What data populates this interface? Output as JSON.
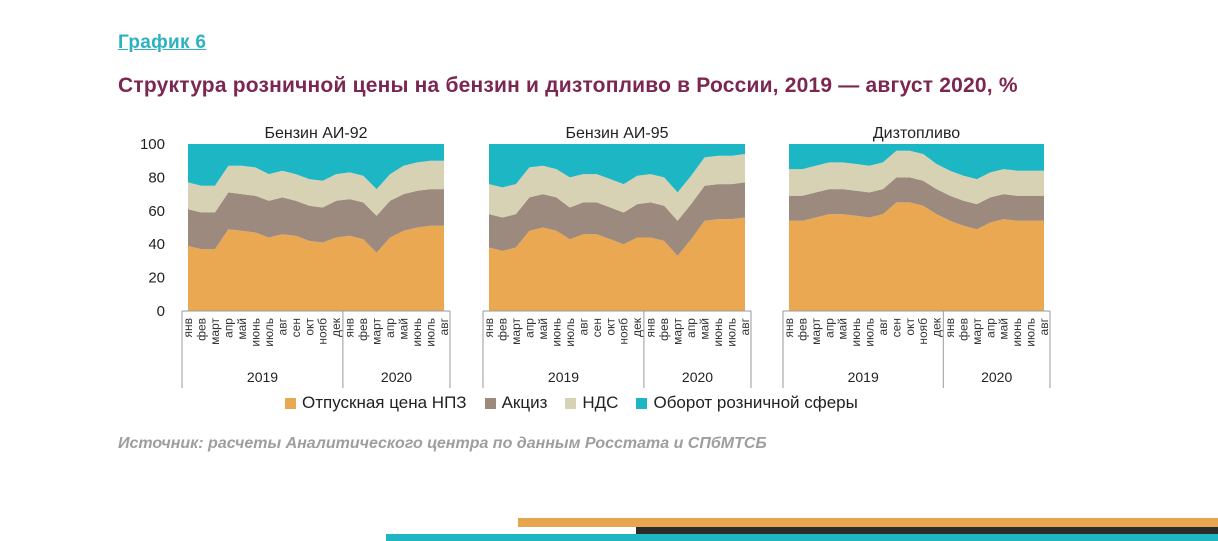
{
  "header": {
    "label": "График 6",
    "title": "Структура розничной цены на бензин и дизтопливо в России, 2019 — август 2020, %"
  },
  "source": "Источник: расчеты Аналитического центра по данным Росстата и СПбМТСБ",
  "colors": {
    "refinery": "#e9a851",
    "excise": "#9b8a7d",
    "vat": "#d8d2b4",
    "retail": "#1cb6c4",
    "title": "#7b2752",
    "link": "#2db2c0"
  },
  "chart_data": [
    {
      "type": "area",
      "stacked": true,
      "title": "Бензин АИ-92",
      "ylim": [
        0,
        100
      ],
      "yticks": [
        0,
        20,
        40,
        60,
        80,
        100
      ],
      "categories": [
        "янв",
        "фев",
        "март",
        "апр",
        "май",
        "июнь",
        "июль",
        "авг",
        "сен",
        "окт",
        "нояб",
        "дек",
        "янв",
        "фев",
        "март",
        "апр",
        "май",
        "июнь",
        "июль",
        "авг"
      ],
      "year_groups": [
        {
          "label": "2019",
          "count": 12
        },
        {
          "label": "2020",
          "count": 8
        }
      ],
      "series": [
        {
          "name": "Отпускная цена НПЗ",
          "values": [
            39,
            37,
            37,
            49,
            48,
            47,
            44,
            46,
            45,
            42,
            41,
            44,
            45,
            43,
            35,
            44,
            48,
            50,
            51,
            51
          ]
        },
        {
          "name": "Акциз",
          "values": [
            22,
            22,
            22,
            22,
            22,
            22,
            22,
            22,
            21,
            21,
            21,
            22,
            22,
            22,
            22,
            22,
            22,
            22,
            22,
            22
          ]
        },
        {
          "name": "НДС",
          "values": [
            16,
            16,
            16,
            16,
            17,
            17,
            16,
            16,
            16,
            16,
            16,
            16,
            16,
            16,
            16,
            16,
            17,
            17,
            17,
            17
          ]
        },
        {
          "name": "Оборот розничной сферы",
          "values": [
            23,
            25,
            25,
            13,
            13,
            14,
            18,
            16,
            18,
            21,
            22,
            18,
            17,
            19,
            27,
            18,
            13,
            11,
            10,
            10
          ]
        }
      ]
    },
    {
      "type": "area",
      "stacked": true,
      "title": "Бензин АИ-95",
      "ylim": [
        0,
        100
      ],
      "yticks": [
        0,
        20,
        40,
        60,
        80,
        100
      ],
      "categories": [
        "янв",
        "фев",
        "март",
        "апр",
        "май",
        "июнь",
        "июль",
        "авг",
        "сен",
        "окт",
        "нояб",
        "дек",
        "янв",
        "фев",
        "март",
        "апр",
        "май",
        "июнь",
        "июль",
        "авг"
      ],
      "year_groups": [
        {
          "label": "2019",
          "count": 12
        },
        {
          "label": "2020",
          "count": 8
        }
      ],
      "series": [
        {
          "name": "Отпускная цена НПЗ",
          "values": [
            38,
            36,
            38,
            48,
            50,
            48,
            43,
            46,
            46,
            43,
            40,
            44,
            44,
            42,
            33,
            43,
            54,
            55,
            55,
            56
          ]
        },
        {
          "name": "Акциз",
          "values": [
            20,
            20,
            20,
            20,
            20,
            20,
            19,
            19,
            19,
            19,
            19,
            20,
            21,
            21,
            21,
            21,
            21,
            21,
            21,
            21
          ]
        },
        {
          "name": "НДС",
          "values": [
            18,
            18,
            18,
            18,
            17,
            17,
            18,
            17,
            17,
            17,
            17,
            17,
            17,
            17,
            17,
            17,
            17,
            17,
            17,
            17
          ]
        },
        {
          "name": "Оборот розничной сферы",
          "values": [
            24,
            26,
            24,
            14,
            13,
            15,
            20,
            18,
            18,
            21,
            24,
            19,
            18,
            20,
            29,
            19,
            8,
            7,
            7,
            6
          ]
        }
      ]
    },
    {
      "type": "area",
      "stacked": true,
      "title": "Дизтопливо",
      "ylim": [
        0,
        100
      ],
      "yticks": [
        0,
        20,
        40,
        60,
        80,
        100
      ],
      "categories": [
        "янв",
        "фев",
        "март",
        "апр",
        "май",
        "июнь",
        "июль",
        "авг",
        "сен",
        "окт",
        "нояб",
        "дек",
        "янв",
        "фев",
        "март",
        "апр",
        "май",
        "июнь",
        "июль",
        "авг"
      ],
      "year_groups": [
        {
          "label": "2019",
          "count": 12
        },
        {
          "label": "2020",
          "count": 8
        }
      ],
      "series": [
        {
          "name": "Отпускная цена НПЗ",
          "values": [
            54,
            54,
            56,
            58,
            58,
            57,
            56,
            58,
            65,
            65,
            63,
            58,
            54,
            51,
            49,
            53,
            55,
            54,
            54,
            54
          ]
        },
        {
          "name": "Акциз",
          "values": [
            15,
            15,
            15,
            15,
            15,
            15,
            15,
            15,
            15,
            15,
            15,
            15,
            15,
            15,
            15,
            15,
            15,
            15,
            15,
            15
          ]
        },
        {
          "name": "НДС",
          "values": [
            16,
            16,
            16,
            16,
            16,
            16,
            16,
            16,
            16,
            16,
            16,
            15,
            15,
            15,
            15,
            15,
            15,
            15,
            15,
            15
          ]
        },
        {
          "name": "Оборот розничной сферы",
          "values": [
            15,
            15,
            13,
            11,
            11,
            12,
            13,
            11,
            4,
            4,
            6,
            12,
            16,
            19,
            21,
            17,
            15,
            16,
            16,
            16
          ]
        }
      ]
    }
  ],
  "legend": [
    {
      "label": "Отпускная цена НПЗ",
      "color_key": "refinery"
    },
    {
      "label": "Акциз",
      "color_key": "excise"
    },
    {
      "label": "НДС",
      "color_key": "vat"
    },
    {
      "label": "Оборот розничной сферы",
      "color_key": "retail"
    }
  ]
}
